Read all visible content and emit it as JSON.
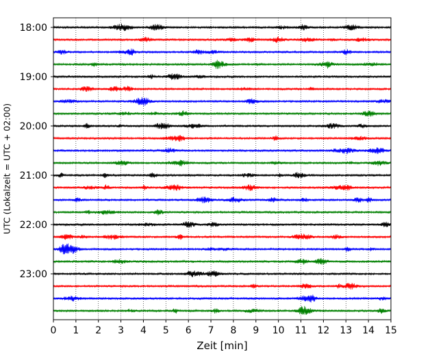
{
  "chart_data": {
    "type": "line",
    "title": "",
    "xlabel": "Zeit  [min]",
    "ylabel": "UTC (Lokalzeit = UTC + 02:00)",
    "xlim": [
      0,
      15
    ],
    "x_ticks": [
      "0",
      "1",
      "2",
      "3",
      "4",
      "5",
      "6",
      "7",
      "8",
      "9",
      "10",
      "11",
      "12",
      "13",
      "14",
      "15"
    ],
    "y_tick_labels": [
      "18:00",
      "19:00",
      "20:00",
      "21:00",
      "22:00",
      "23:00"
    ],
    "row_interval_min": 15,
    "row_start": "18:00",
    "row_count": 24,
    "row_colors": [
      "#000000",
      "#ff0000",
      "#0000ff",
      "#008000"
    ],
    "grid": {
      "x": "dotted",
      "y": false
    },
    "legend": "none"
  }
}
